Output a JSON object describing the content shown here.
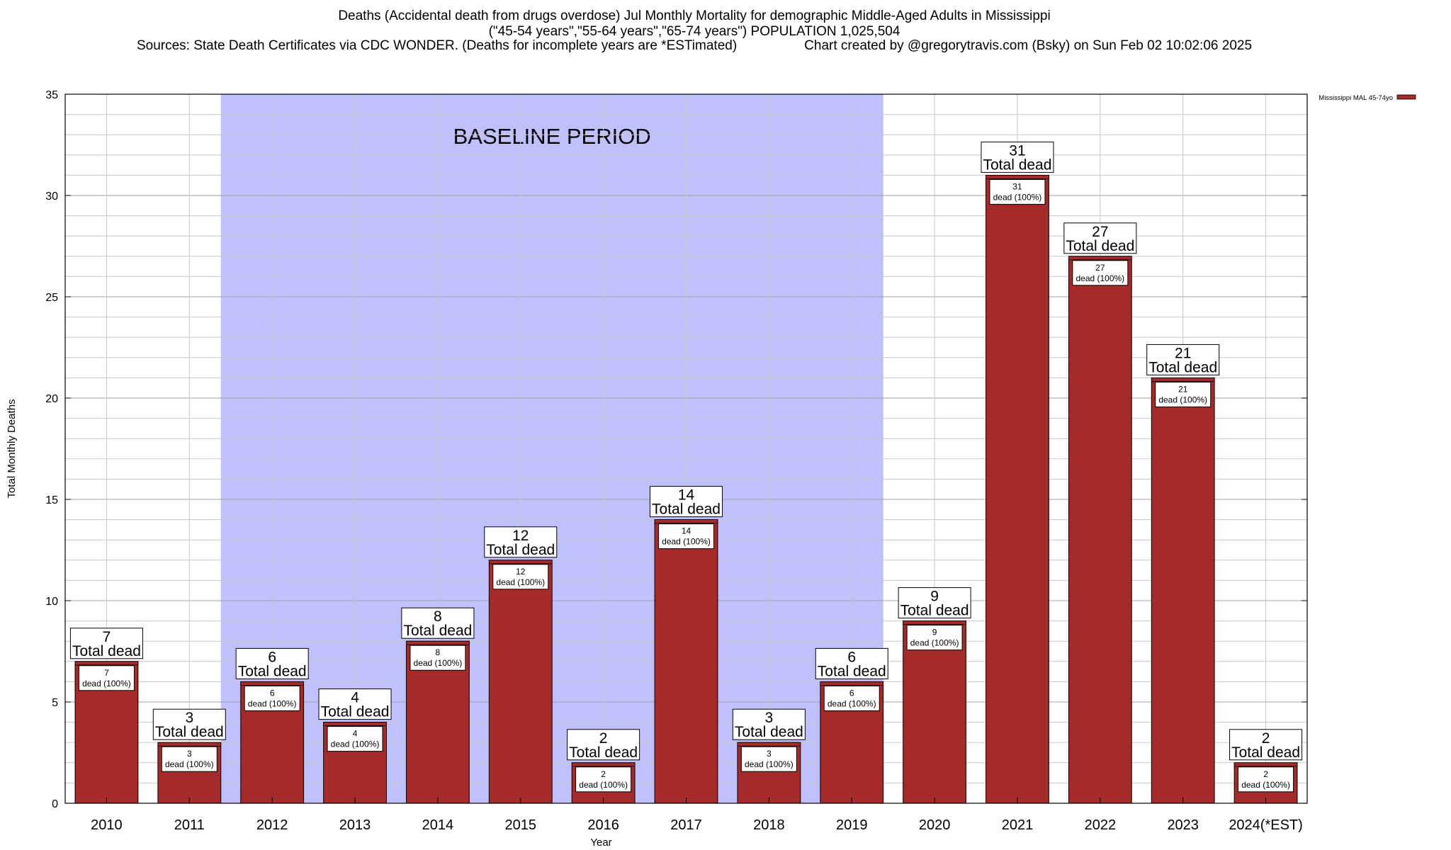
{
  "header": {
    "title_line1": "Deaths (Accidental death from drugs overdose) Jul Monthly Mortality for demographic Middle-Aged Adults in Mississippi",
    "title_line2": "(\"45-54 years\",\"55-64 years\",\"65-74 years\") POPULATION 1,025,504",
    "title_line3": "Sources: State Death Certificates via CDC WONDER. (Deaths for incomplete years are *ESTimated)                  Chart created by @gregorytravis.com (Bsky) on Sun Feb 02 10:02:06 2025"
  },
  "chart_data": {
    "type": "bar",
    "xlabel": "Year",
    "ylabel": "Total Monthly Deaths",
    "ylim": [
      0,
      35
    ],
    "y_major_ticks": [
      0,
      5,
      10,
      15,
      20,
      25,
      30,
      35
    ],
    "grid": true,
    "legend": {
      "position": "top-right",
      "entries": [
        "Mississippi MAL 45-74yo"
      ]
    },
    "bar_color": "#a52a2a",
    "shading_color": "#c0c0fe",
    "categories": [
      "2010",
      "2011",
      "2012",
      "2013",
      "2014",
      "2015",
      "2016",
      "2017",
      "2018",
      "2019",
      "2020",
      "2021",
      "2022",
      "2023",
      "2024(*EST)"
    ],
    "series": [
      {
        "name": "Mississippi MAL 45-74yo",
        "values": [
          7,
          3,
          6,
          4,
          8,
          12,
          2,
          14,
          3,
          6,
          9,
          31,
          27,
          21,
          2
        ]
      }
    ],
    "bar_top_labels": [
      "Total dead",
      "Total dead",
      "Total dead",
      "Total dead",
      "Total dead",
      "Total dead",
      "Total dead",
      "Total dead",
      "Total dead",
      "Total dead",
      "Total dead",
      "Total dead",
      "Total dead",
      "Total dead",
      "Total dead"
    ],
    "bar_inner_labels": [
      "dead (100%)",
      "dead (100%)",
      "dead (100%)",
      "dead (100%)",
      "dead (100%)",
      "dead (100%)",
      "dead (100%)",
      "dead (100%)",
      "dead (100%)",
      "dead (100%)",
      "dead (100%)",
      "dead (100%)",
      "dead (100%)",
      "dead (100%)",
      "dead (100%)"
    ],
    "annotations": [
      {
        "text": "BASELINE PERIOD",
        "from_category": "2012",
        "to_category": "2019"
      }
    ]
  }
}
